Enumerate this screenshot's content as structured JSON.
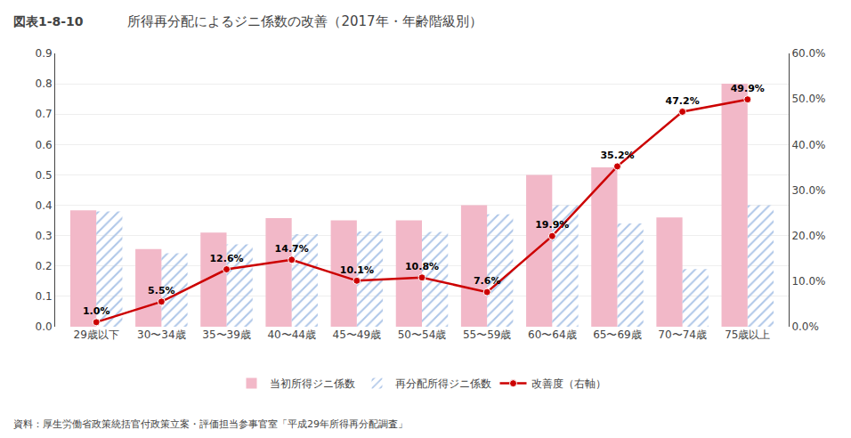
{
  "chart_data": {
    "type": "bar",
    "title": "所得再分配によるジニ係数の改善（2017年・年齢階級別）",
    "annotations": [
      "図表1-8-10",
      "資料：厚生労働省政策統括官付政策立案・評価担当参事官室「平成29年所得再分配調査」"
    ],
    "categories": [
      "29歳以下",
      "30〜34歳",
      "35〜39歳",
      "40〜44歳",
      "45〜49歳",
      "50〜54歳",
      "55〜59歳",
      "60〜64歳",
      "65〜69歳",
      "70〜74歳",
      "75歳以上"
    ],
    "series": [
      {
        "name": "当初所得ジニ係数",
        "color": "#f2b8c8",
        "values": [
          0.383,
          0.256,
          0.31,
          0.358,
          0.35,
          0.35,
          0.4,
          0.5,
          0.525,
          0.36,
          0.8
        ]
      },
      {
        "name": "再分配所得ジニ係数",
        "color": "#aec6e8",
        "values": [
          0.38,
          0.242,
          0.271,
          0.305,
          0.314,
          0.312,
          0.37,
          0.4,
          0.34,
          0.19,
          0.4
        ]
      },
      {
        "name": "改善度（右軸）",
        "type": "line",
        "axis": "y2",
        "color": "#cc0000",
        "marker": "circle",
        "data_labels": true,
        "values": [
          0.01,
          0.055,
          0.126,
          0.147,
          0.101,
          0.108,
          0.076,
          0.199,
          0.352,
          0.472,
          0.499
        ],
        "value_labels": [
          "1.0%",
          "5.5%",
          "12.6%",
          "14.7%",
          "10.1%",
          "10.8%",
          "7.6%",
          "19.9%",
          "35.2%",
          "47.2%",
          "49.9%"
        ]
      }
    ],
    "ylim": [
      0.0,
      0.9
    ],
    "yticks": [
      {
        "value": 0.0,
        "label": "0.0"
      },
      0.1,
      0.2,
      0.3,
      0.4,
      0.5,
      0.6,
      0.7,
      0.8,
      0.9
    ],
    "y2lim": [
      0.0,
      0.6
    ],
    "y2ticks": [
      {
        "value": 0.0,
        "label": "0.0%"
      },
      {
        "value": 0.1,
        "label": "10.0%"
      },
      {
        "value": 0.2,
        "label": "20.0%"
      },
      {
        "value": 0.3,
        "label": "30.0%"
      },
      {
        "value": 0.4,
        "label": "40.0%"
      },
      {
        "value": 0.5,
        "label": "50.0%"
      },
      {
        "value": 0.6,
        "label": "60.0%"
      }
    ],
    "grid": true,
    "legend": "bottom"
  }
}
